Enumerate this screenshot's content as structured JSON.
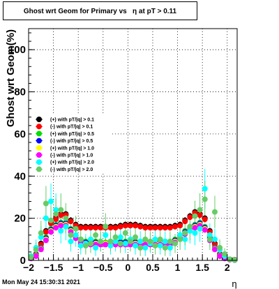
{
  "header": {
    "title": "Ghost wrt Geom for Primary vs   η at pT > 0.11"
  },
  "footer": {
    "timestamp": "Mon May 24 15:30:31 2021"
  },
  "chart_data": {
    "type": "scatter",
    "title": "Ghost wrt Geom for Primary vs   η at pT > 0.11",
    "xlabel": "η",
    "ylabel": "Ghost wrt Geom(%)",
    "xlim": [
      -2,
      2.2
    ],
    "ylim": [
      0,
      110
    ],
    "xticks": [
      "−2",
      "−1.5",
      "−1",
      "−0.5",
      "0",
      "0.5",
      "1",
      "1.5",
      "2"
    ],
    "xtick_values": [
      -2,
      -1.5,
      -1,
      -0.5,
      0,
      0.5,
      1,
      1.5,
      2
    ],
    "yticks": [
      "0",
      "20",
      "40",
      "60",
      "80",
      "100"
    ],
    "ytick_values": [
      0,
      20,
      40,
      60,
      80,
      100
    ],
    "grid": true,
    "legend_position": "left-middle",
    "x": [
      -1.95,
      -1.85,
      -1.75,
      -1.65,
      -1.55,
      -1.45,
      -1.35,
      -1.25,
      -1.15,
      -1.05,
      -0.95,
      -0.85,
      -0.75,
      -0.65,
      -0.55,
      -0.45,
      -0.35,
      -0.25,
      -0.15,
      -0.05,
      0.05,
      0.15,
      0.25,
      0.35,
      0.45,
      0.55,
      0.65,
      0.75,
      0.85,
      0.95,
      1.05,
      1.15,
      1.25,
      1.35,
      1.45,
      1.55,
      1.65,
      1.75,
      1.85,
      1.95,
      2.05,
      2.15
    ],
    "series": [
      {
        "name": "(+) with pT/|q| > 0.1",
        "color": "#000000",
        "values": [
          1.5,
          3,
          8,
          14,
          18,
          20,
          22,
          22,
          19,
          17,
          16,
          16,
          16,
          16,
          16,
          16,
          16,
          16,
          16.5,
          17,
          17,
          17,
          16.5,
          16,
          16,
          16,
          16,
          16,
          16,
          16.5,
          17,
          19,
          21,
          23,
          22,
          20,
          14,
          8,
          3,
          1.5,
          0.5,
          0.3
        ]
      },
      {
        "name": "(-) with pT/|q| > 0.1",
        "color": "#ff0000",
        "values": [
          1.4,
          2.8,
          7.5,
          13.5,
          17.5,
          19.5,
          21.5,
          21.5,
          18.5,
          16.5,
          15.5,
          15.5,
          15.5,
          15.5,
          15.5,
          15.5,
          15.5,
          15.5,
          16,
          16.5,
          16.5,
          16.5,
          16,
          15.5,
          15.5,
          15.5,
          15.5,
          15.5,
          15.5,
          16,
          16.5,
          18.5,
          20.5,
          22.5,
          21.5,
          19.5,
          13.5,
          7.5,
          2.8,
          1.4,
          0.5,
          0.3
        ]
      },
      {
        "name": "(+) with pT/|q| > 0.5",
        "color": "#00dd00",
        "values": [
          1.2,
          2.5,
          6,
          11,
          15,
          17,
          18,
          18,
          15,
          12,
          10,
          9,
          9,
          9,
          8.5,
          8.5,
          9,
          9,
          9,
          9,
          9,
          9,
          9,
          9,
          8.5,
          8.5,
          9,
          9,
          9,
          10,
          12,
          14,
          16,
          17,
          18,
          16,
          11,
          6,
          2.5,
          1.2,
          0.4,
          0.2
        ]
      },
      {
        "name": "(-) with pT/|q| > 0.5",
        "color": "#0000ff",
        "values": [
          1.1,
          2.4,
          5.8,
          10.5,
          14.5,
          16.5,
          17.5,
          17.5,
          14.5,
          11.5,
          9.5,
          8.5,
          8.5,
          8.5,
          8,
          8,
          8.5,
          8.5,
          8.5,
          8.5,
          8.5,
          8.5,
          8.5,
          8.5,
          8,
          8,
          8.5,
          8.5,
          8.5,
          9.5,
          11.5,
          13.5,
          15.5,
          16.5,
          17.5,
          15.5,
          10.5,
          5.8,
          2.4,
          1.1,
          0.4,
          0.2
        ]
      },
      {
        "name": "(+) with pT/|q| > 1.0",
        "color": "#ffff00",
        "values": [
          1,
          2.2,
          5.5,
          10,
          14,
          16,
          17,
          17,
          14,
          11,
          9,
          8,
          8,
          8,
          8,
          8,
          8,
          8,
          8,
          8,
          8,
          8,
          8,
          8,
          8,
          8,
          8,
          8,
          8,
          9,
          11,
          13,
          15,
          16,
          17,
          15,
          10,
          5.5,
          2.2,
          1,
          0.3,
          0.2
        ]
      },
      {
        "name": "(-) with pT/|q| > 1.0",
        "color": "#ff00ff",
        "values": [
          0.9,
          2,
          5.2,
          9.5,
          13.5,
          15.5,
          16.5,
          16.5,
          13.5,
          10.5,
          8.5,
          7.5,
          7.5,
          7.5,
          7.5,
          7.5,
          7.5,
          7.5,
          7.5,
          7.5,
          7.5,
          7.5,
          7.5,
          7.5,
          7.5,
          7.5,
          7.5,
          7.5,
          7.5,
          8.5,
          10.5,
          12.5,
          14.5,
          15.5,
          16.5,
          14.5,
          9.5,
          5.2,
          2,
          0.9,
          0.3,
          0.1
        ]
      },
      {
        "name": "(+) with pT/|q| > 2.0",
        "color": "#00ffff",
        "values": [
          2,
          6,
          11,
          20,
          28,
          24,
          14,
          16,
          9,
          12,
          7,
          8,
          10,
          6,
          9,
          12,
          7,
          9,
          11,
          8,
          10,
          7,
          9,
          6,
          8,
          10,
          7,
          9,
          6,
          8,
          12,
          10,
          14,
          13,
          15,
          34,
          12,
          10,
          5,
          2,
          0.5,
          0.2
        ]
      },
      {
        "name": "(-) with pT/|q| > 2.0",
        "color": "#66cc66",
        "values": [
          1.5,
          5,
          13,
          27,
          19,
          22,
          24,
          20,
          12,
          15,
          10,
          7,
          8,
          12,
          9,
          16,
          9,
          11,
          8,
          13,
          9,
          11,
          6,
          10,
          9,
          7,
          10,
          6,
          9,
          8,
          10,
          13,
          16,
          21,
          24,
          29,
          10,
          23,
          6,
          3,
          0.5,
          0.2
        ]
      }
    ]
  }
}
